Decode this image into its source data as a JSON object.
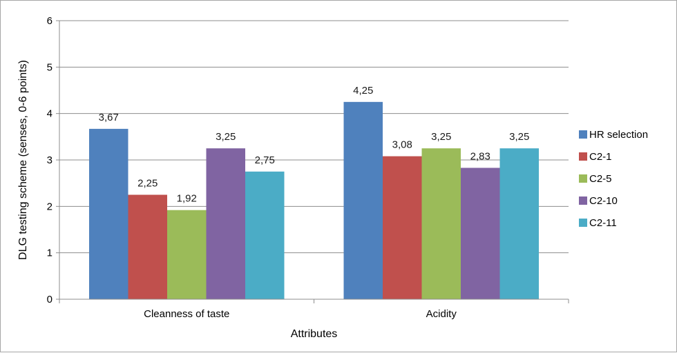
{
  "chart_data": {
    "type": "bar",
    "title": "",
    "xlabel": "Attributes",
    "ylabel": "DLG testing scheme (senses, 0-6 points)",
    "ylim": [
      0,
      6
    ],
    "yticks": [
      "0",
      "1",
      "2",
      "3",
      "4",
      "5",
      "6"
    ],
    "grid": true,
    "legend_position": "right",
    "categories": [
      "Cleanness of taste",
      "Acidity"
    ],
    "series": [
      {
        "name": "HR selection",
        "color": "#4f81bd",
        "values": [
          3.67,
          4.25
        ],
        "labels": [
          "3,67",
          "4,25"
        ]
      },
      {
        "name": "C2-1",
        "color": "#c0504d",
        "values": [
          2.25,
          3.08
        ],
        "labels": [
          "2,25",
          "3,08"
        ]
      },
      {
        "name": "C2-5",
        "color": "#9bbb59",
        "values": [
          1.92,
          3.25
        ],
        "labels": [
          "1,92",
          "3,25"
        ]
      },
      {
        "name": "C2-10",
        "color": "#8064a2",
        "values": [
          3.25,
          2.83
        ],
        "labels": [
          "3,25",
          "2,83"
        ]
      },
      {
        "name": "C2-11",
        "color": "#4bacc6",
        "values": [
          2.75,
          3.25
        ],
        "labels": [
          "2,75",
          "3,25"
        ]
      }
    ]
  }
}
